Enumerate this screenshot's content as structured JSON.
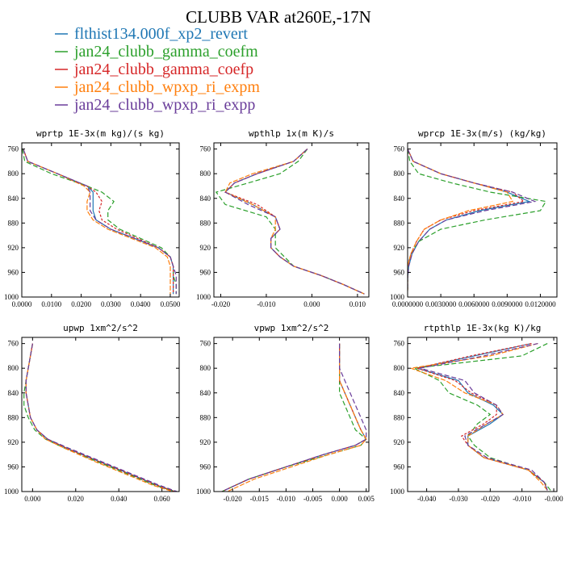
{
  "figure": {
    "title": "CLUBB VAR at260E,-17N"
  },
  "legend": [
    {
      "name": "flthist134.000f_xp2_revert",
      "color": "#1f77b4"
    },
    {
      "name": "jan24_clubb_gamma_coefm",
      "color": "#2ca02c"
    },
    {
      "name": "jan24_clubb_gamma_coefp",
      "color": "#d62728"
    },
    {
      "name": "jan24_clubb_wpxp_ri_expm",
      "color": "#ff7f0e"
    },
    {
      "name": "jan24_clubb_wpxp_ri_expp",
      "color": "#6a3d9a"
    }
  ],
  "chart_data": [
    {
      "type": "line",
      "title": "wprtp  1E-3x(m kg)/(s kg)",
      "xlim": [
        0,
        0.053
      ],
      "ylim": [
        1000,
        750
      ],
      "xticks": [
        "0.0000",
        "0.0100",
        "0.0200",
        "0.0300",
        "0.0400",
        "0.0500"
      ],
      "xtick_values": [
        0,
        0.01,
        0.02,
        0.03,
        0.04,
        0.05
      ],
      "yticks": [
        "760",
        "800",
        "840",
        "880",
        "920",
        "960",
        "1000"
      ],
      "y": [
        760,
        780,
        800,
        820,
        830,
        845,
        860,
        875,
        890,
        905,
        920,
        935,
        950,
        965,
        980,
        995
      ],
      "series": [
        {
          "values": [
            0.0005,
            0.002,
            0.012,
            0.022,
            0.024,
            0.024,
            0.024,
            0.025,
            0.03,
            0.038,
            0.046,
            0.05,
            0.051,
            0.051,
            0.051,
            0.051
          ]
        },
        {
          "values": [
            0.0002,
            0.001,
            0.01,
            0.022,
            0.027,
            0.031,
            0.029,
            0.029,
            0.033,
            0.04,
            0.047,
            0.05,
            0.051,
            0.051,
            0.052,
            0.052
          ]
        },
        {
          "values": [
            0.0005,
            0.002,
            0.012,
            0.022,
            0.025,
            0.027,
            0.026,
            0.027,
            0.032,
            0.039,
            0.046,
            0.05,
            0.051,
            0.051,
            0.051,
            0.051
          ]
        },
        {
          "values": [
            0.0005,
            0.002,
            0.012,
            0.021,
            0.023,
            0.022,
            0.022,
            0.024,
            0.029,
            0.037,
            0.045,
            0.049,
            0.05,
            0.05,
            0.05,
            0.05
          ]
        },
        {
          "values": [
            0.0005,
            0.002,
            0.012,
            0.022,
            0.023,
            0.023,
            0.023,
            0.025,
            0.03,
            0.038,
            0.046,
            0.05,
            0.051,
            0.052,
            0.052,
            0.052
          ]
        }
      ]
    },
    {
      "type": "line",
      "title": "wpthlp  1x(m K)/s",
      "xlim": [
        -0.0215,
        0.0125
      ],
      "ylim": [
        1000,
        750
      ],
      "xticks": [
        "-0.020",
        "-0.010",
        "0.000",
        "0.010"
      ],
      "xtick_values": [
        -0.02,
        -0.01,
        0.0,
        0.01
      ],
      "yticks": [
        "760",
        "800",
        "840",
        "880",
        "920",
        "960",
        "1000"
      ],
      "y": [
        760,
        780,
        800,
        815,
        830,
        850,
        870,
        890,
        905,
        920,
        935,
        950,
        965,
        980,
        995
      ],
      "series": [
        {
          "values": [
            -0.001,
            -0.004,
            -0.012,
            -0.017,
            -0.019,
            -0.013,
            -0.008,
            -0.007,
            -0.009,
            -0.009,
            -0.007,
            -0.004,
            0.002,
            0.007,
            0.0115
          ]
        },
        {
          "values": [
            -0.001,
            -0.003,
            -0.007,
            -0.014,
            -0.021,
            -0.019,
            -0.01,
            -0.008,
            -0.008,
            -0.008,
            -0.006,
            -0.004,
            0.002,
            0.007,
            0.0115
          ]
        },
        {
          "values": [
            -0.001,
            -0.004,
            -0.012,
            -0.017,
            -0.019,
            -0.012,
            -0.008,
            -0.007,
            -0.009,
            -0.009,
            -0.007,
            -0.004,
            0.002,
            0.007,
            0.0115
          ]
        },
        {
          "values": [
            -0.001,
            -0.004,
            -0.013,
            -0.018,
            -0.019,
            -0.013,
            -0.008,
            -0.008,
            -0.009,
            -0.009,
            -0.007,
            -0.004,
            0.002,
            0.007,
            0.0115
          ]
        },
        {
          "values": [
            -0.001,
            -0.004,
            -0.012,
            -0.017,
            -0.019,
            -0.014,
            -0.008,
            -0.007,
            -0.009,
            -0.009,
            -0.007,
            -0.004,
            0.002,
            0.007,
            0.0115
          ]
        }
      ]
    },
    {
      "type": "line",
      "title": "wprcp  1E-3x(m/s) (kg/kg)",
      "xlim": [
        0,
        0.0135
      ],
      "ylim": [
        1000,
        750
      ],
      "xticks": [
        "0.0000000",
        "0.0030000",
        "0.0060000",
        "0.0090000",
        "0.0120000"
      ],
      "xtick_values": [
        0,
        0.003,
        0.006,
        0.009,
        0.012
      ],
      "yticks": [
        "760",
        "800",
        "840",
        "880",
        "920",
        "960",
        "1000"
      ],
      "y": [
        760,
        780,
        800,
        815,
        830,
        845,
        860,
        875,
        890,
        910,
        930,
        950,
        970,
        990
      ],
      "series": [
        {
          "values": [
            0.0,
            0.0005,
            0.003,
            0.006,
            0.009,
            0.011,
            0.0065,
            0.0035,
            0.002,
            0.001,
            0.0004,
            0.0001,
            0.0,
            0.0
          ]
        },
        {
          "values": [
            0.0,
            0.0002,
            0.001,
            0.004,
            0.0075,
            0.0125,
            0.012,
            0.007,
            0.003,
            0.001,
            0.0003,
            0.0,
            0.0,
            0.0
          ]
        },
        {
          "values": [
            0.0,
            0.0005,
            0.003,
            0.006,
            0.0095,
            0.0105,
            0.006,
            0.003,
            0.0015,
            0.0008,
            0.0003,
            0.0,
            0.0,
            0.0
          ]
        },
        {
          "values": [
            0.0,
            0.0005,
            0.003,
            0.006,
            0.009,
            0.0095,
            0.0055,
            0.003,
            0.0015,
            0.0008,
            0.0003,
            0.0,
            0.0,
            0.0
          ]
        },
        {
          "values": [
            0.0,
            0.0005,
            0.003,
            0.006,
            0.0095,
            0.0115,
            0.007,
            0.0035,
            0.002,
            0.001,
            0.0004,
            0.0001,
            0.0,
            0.0
          ]
        }
      ]
    },
    {
      "type": "line",
      "title": "upwp  1xm^2/s^2",
      "xlim": [
        -0.005,
        0.068
      ],
      "ylim": [
        1000,
        750
      ],
      "xticks": [
        "0.000",
        "0.020",
        "0.040",
        "0.060"
      ],
      "xtick_values": [
        0,
        0.02,
        0.04,
        0.06
      ],
      "yticks": [
        "760",
        "800",
        "840",
        "880",
        "920",
        "960",
        "1000"
      ],
      "y": [
        760,
        780,
        800,
        820,
        840,
        860,
        880,
        900,
        915,
        930,
        950,
        970,
        990,
        1000
      ],
      "series": [
        {
          "values": [
            0.0,
            -0.001,
            -0.002,
            -0.003,
            -0.003,
            -0.002,
            -0.001,
            0.002,
            0.007,
            0.016,
            0.03,
            0.044,
            0.058,
            0.066
          ]
        },
        {
          "values": [
            0.0,
            -0.001,
            -0.002,
            -0.003,
            -0.004,
            -0.004,
            -0.002,
            0.001,
            0.006,
            0.015,
            0.029,
            0.043,
            0.057,
            0.066
          ]
        },
        {
          "values": [
            0.0,
            -0.001,
            -0.002,
            -0.003,
            -0.003,
            -0.002,
            -0.001,
            0.002,
            0.007,
            0.016,
            0.03,
            0.044,
            0.058,
            0.066
          ]
        },
        {
          "values": [
            0.0,
            -0.001,
            -0.002,
            -0.003,
            -0.003,
            -0.002,
            -0.001,
            0.002,
            0.006,
            0.015,
            0.028,
            0.042,
            0.056,
            0.065
          ]
        },
        {
          "values": [
            0.0,
            -0.001,
            -0.002,
            -0.003,
            -0.003,
            -0.002,
            -0.001,
            0.002,
            0.007,
            0.017,
            0.031,
            0.045,
            0.059,
            0.067
          ]
        }
      ]
    },
    {
      "type": "line",
      "title": "vpwp  1xm^2/s^2",
      "xlim": [
        -0.0235,
        0.0055
      ],
      "ylim": [
        1000,
        750
      ],
      "xticks": [
        "-0.020",
        "-0.015",
        "-0.010",
        "-0.005",
        "0.000",
        "0.005"
      ],
      "xtick_values": [
        -0.02,
        -0.015,
        -0.01,
        -0.005,
        0.0,
        0.005
      ],
      "yticks": [
        "760",
        "800",
        "840",
        "880",
        "920",
        "960",
        "1000"
      ],
      "y": [
        760,
        780,
        800,
        820,
        840,
        860,
        880,
        900,
        915,
        925,
        940,
        960,
        980,
        1000
      ],
      "series": [
        {
          "values": [
            0.0,
            0.0,
            0.0,
            0.0,
            0.001,
            0.002,
            0.003,
            0.004,
            0.005,
            0.003,
            -0.003,
            -0.01,
            -0.017,
            -0.022
          ]
        },
        {
          "values": [
            0.0,
            0.0,
            0.0,
            0.0,
            0.0,
            0.001,
            0.002,
            0.003,
            0.005,
            0.004,
            -0.002,
            -0.01,
            -0.017,
            -0.022
          ]
        },
        {
          "values": [
            0.0,
            0.0,
            0.0,
            0.0,
            0.001,
            0.002,
            0.003,
            0.004,
            0.005,
            0.003,
            -0.003,
            -0.01,
            -0.017,
            -0.022
          ]
        },
        {
          "values": [
            0.0,
            0.0,
            0.0,
            0.0,
            0.001,
            0.002,
            0.003,
            0.004,
            0.005,
            0.004,
            -0.002,
            -0.009,
            -0.016,
            -0.021
          ]
        },
        {
          "values": [
            0.0,
            0.0,
            0.0,
            0.001,
            0.002,
            0.003,
            0.004,
            0.005,
            0.005,
            0.003,
            -0.003,
            -0.01,
            -0.017,
            -0.022
          ]
        }
      ]
    },
    {
      "type": "line",
      "title": "rtpthlp  1E-3x(kg K)/kg",
      "xlim": [
        -0.046,
        0.001
      ],
      "ylim": [
        1000,
        750
      ],
      "xticks": [
        "-0.040",
        "-0.030",
        "-0.020",
        "-0.010",
        "-0.000"
      ],
      "xtick_values": [
        -0.04,
        -0.03,
        -0.02,
        -0.01,
        0.0
      ],
      "yticks": [
        "760",
        "800",
        "840",
        "880",
        "920",
        "960",
        "1000"
      ],
      "y": [
        760,
        780,
        800,
        820,
        840,
        860,
        875,
        890,
        910,
        925,
        945,
        965,
        985,
        998
      ],
      "series": [
        {
          "values": [
            -0.007,
            -0.025,
            -0.043,
            -0.03,
            -0.027,
            -0.019,
            -0.016,
            -0.02,
            -0.027,
            -0.027,
            -0.022,
            -0.008,
            -0.003,
            -0.002
          ]
        },
        {
          "values": [
            -0.002,
            -0.01,
            -0.044,
            -0.036,
            -0.033,
            -0.024,
            -0.02,
            -0.024,
            -0.027,
            -0.025,
            -0.02,
            -0.008,
            -0.003,
            -0.001
          ]
        },
        {
          "values": [
            -0.007,
            -0.026,
            -0.043,
            -0.031,
            -0.026,
            -0.018,
            -0.018,
            -0.022,
            -0.029,
            -0.027,
            -0.022,
            -0.008,
            -0.003,
            -0.002
          ]
        },
        {
          "values": [
            -0.005,
            -0.02,
            -0.045,
            -0.034,
            -0.028,
            -0.018,
            -0.016,
            -0.021,
            -0.027,
            -0.027,
            -0.022,
            -0.008,
            -0.004,
            -0.002
          ]
        },
        {
          "values": [
            -0.005,
            -0.022,
            -0.042,
            -0.028,
            -0.025,
            -0.018,
            -0.016,
            -0.021,
            -0.028,
            -0.027,
            -0.021,
            -0.007,
            -0.003,
            -0.002
          ]
        }
      ]
    }
  ]
}
